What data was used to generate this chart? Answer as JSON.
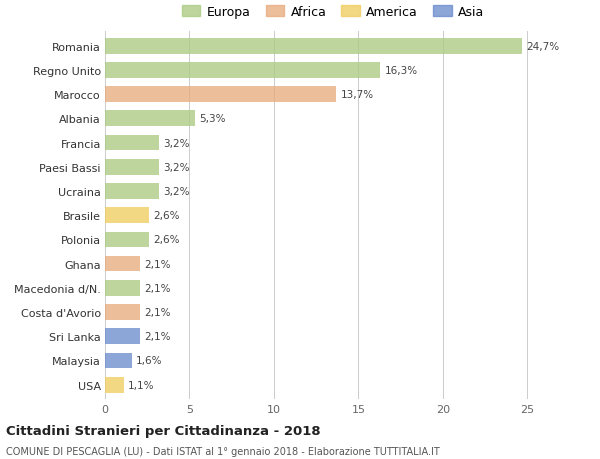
{
  "countries": [
    "Romania",
    "Regno Unito",
    "Marocco",
    "Albania",
    "Francia",
    "Paesi Bassi",
    "Ucraina",
    "Brasile",
    "Polonia",
    "Ghana",
    "Macedonia d/N.",
    "Costa d'Avorio",
    "Sri Lanka",
    "Malaysia",
    "USA"
  ],
  "values": [
    24.7,
    16.3,
    13.7,
    5.3,
    3.2,
    3.2,
    3.2,
    2.6,
    2.6,
    2.1,
    2.1,
    2.1,
    2.1,
    1.6,
    1.1
  ],
  "labels": [
    "24,7%",
    "16,3%",
    "13,7%",
    "5,3%",
    "3,2%",
    "3,2%",
    "3,2%",
    "2,6%",
    "2,6%",
    "2,1%",
    "2,1%",
    "2,1%",
    "2,1%",
    "1,6%",
    "1,1%"
  ],
  "continents": [
    "Europa",
    "Europa",
    "Africa",
    "Europa",
    "Europa",
    "Europa",
    "Europa",
    "America",
    "Europa",
    "Africa",
    "Europa",
    "Africa",
    "Asia",
    "Asia",
    "America"
  ],
  "colors": {
    "Europa": "#a8c97e",
    "Africa": "#e8a878",
    "America": "#f0cc5a",
    "Asia": "#6688cc"
  },
  "title": "Cittadini Stranieri per Cittadinanza - 2018",
  "subtitle": "COMUNE DI PESCAGLIA (LU) - Dati ISTAT al 1° gennaio 2018 - Elaborazione TUTTITALIA.IT",
  "xlim": [
    0,
    27
  ],
  "xticks": [
    0,
    5,
    10,
    15,
    20,
    25
  ],
  "bg_color": "#ffffff",
  "grid_color": "#cccccc",
  "bar_alpha": 0.75,
  "legend_order": [
    "Europa",
    "Africa",
    "America",
    "Asia"
  ]
}
